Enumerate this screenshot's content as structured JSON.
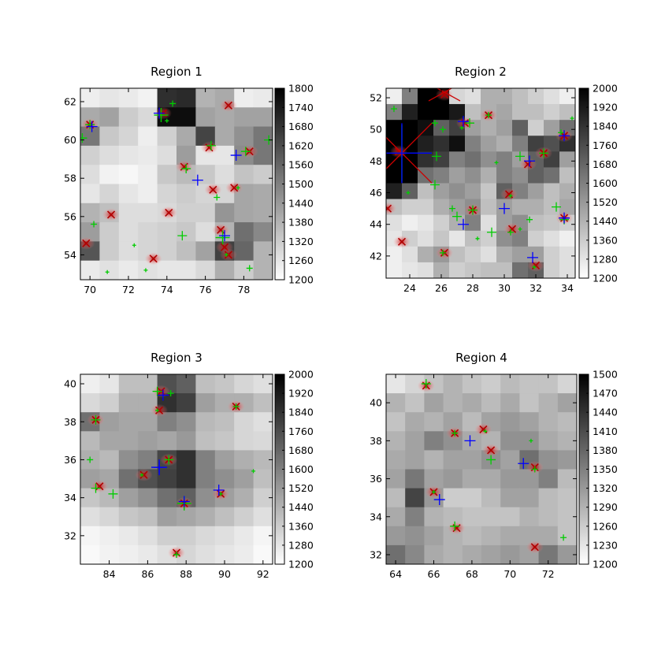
{
  "chart_data": [
    {
      "type": "heatmap",
      "title": "Region 1",
      "xlim": [
        69.5,
        79.5
      ],
      "ylim": [
        52.7,
        62.7
      ],
      "xticks": [
        70,
        72,
        74,
        76,
        78
      ],
      "yticks": [
        54,
        56,
        58,
        60,
        62
      ],
      "colorbar": {
        "min": 1200,
        "max": 1800,
        "ticks": [
          1200,
          1260,
          1320,
          1380,
          1440,
          1500,
          1560,
          1620,
          1680,
          1740,
          1800
        ]
      },
      "grid": {
        "rows": 10,
        "cols": 10,
        "values": [
          [
            1240,
            1260,
            1250,
            1230,
            1690,
            1700,
            1380,
            1400,
            1240,
            1250
          ],
          [
            1400,
            1420,
            1320,
            1290,
            1770,
            1770,
            1420,
            1400,
            1420,
            1420
          ],
          [
            1520,
            1330,
            1300,
            1240,
            1310,
            1400,
            1640,
            1400,
            1460,
            1520
          ],
          [
            1310,
            1280,
            1260,
            1250,
            1280,
            1430,
            1260,
            1260,
            1470,
            1520
          ],
          [
            1280,
            1230,
            1220,
            1240,
            1330,
            1360,
            1330,
            1280,
            1340,
            1320
          ],
          [
            1260,
            1300,
            1260,
            1240,
            1300,
            1320,
            1300,
            1300,
            1410,
            1400
          ],
          [
            1380,
            1350,
            1280,
            1280,
            1290,
            1310,
            1310,
            1450,
            1410,
            1400
          ],
          [
            1430,
            1320,
            1280,
            1300,
            1310,
            1330,
            1280,
            1380,
            1540,
            1480
          ],
          [
            1600,
            1320,
            1280,
            1300,
            1310,
            1350,
            1420,
            1650,
            1560,
            1380
          ],
          [
            1250,
            1270,
            1250,
            1270,
            1260,
            1260,
            1290,
            1390,
            1320,
            1380
          ]
        ]
      },
      "sources": [
        [
          70.0,
          60.8
        ],
        [
          73.8,
          61.4
        ],
        [
          74.9,
          58.6
        ],
        [
          76.2,
          59.6
        ],
        [
          78.3,
          59.4
        ],
        [
          77.2,
          61.8
        ],
        [
          76.4,
          57.4
        ],
        [
          77.5,
          57.5
        ],
        [
          76.8,
          55.3
        ],
        [
          74.1,
          56.2
        ],
        [
          71.1,
          56.1
        ],
        [
          69.8,
          54.6
        ],
        [
          73.3,
          53.8
        ],
        [
          77.0,
          54.4
        ],
        [
          77.2,
          54.0
        ]
      ],
      "detections_green": [
        [
          70.0,
          60.8
        ],
        [
          73.7,
          61.3
        ],
        [
          74.0,
          61.0
        ],
        [
          76.3,
          59.7
        ],
        [
          76.6,
          57.0
        ],
        [
          77.7,
          57.5
        ],
        [
          78.1,
          59.4
        ],
        [
          76.9,
          54.9
        ],
        [
          77.1,
          54.0
        ],
        [
          75.0,
          58.5
        ],
        [
          70.2,
          55.6
        ],
        [
          72.9,
          53.2
        ],
        [
          69.6,
          60.1
        ],
        [
          74.3,
          61.9
        ],
        [
          70.9,
          53.1
        ],
        [
          79.3,
          60.0
        ],
        [
          78.3,
          53.3
        ],
        [
          72.3,
          54.5
        ],
        [
          74.8,
          55.0
        ]
      ],
      "detections_blue": [
        [
          70.1,
          60.7
        ],
        [
          73.6,
          61.4
        ],
        [
          77.6,
          59.2
        ],
        [
          75.6,
          57.9
        ],
        [
          77.0,
          55.0
        ]
      ],
      "big_green": [
        [
          73.7,
          61.3
        ],
        [
          76.9,
          54.9
        ]
      ]
    },
    {
      "type": "heatmap",
      "title": "Region 2",
      "xlim": [
        22.5,
        34.5
      ],
      "ylim": [
        40.6,
        52.6
      ],
      "xticks": [
        24,
        26,
        28,
        30,
        32,
        34
      ],
      "yticks": [
        42,
        44,
        46,
        48,
        50,
        52
      ],
      "colorbar": {
        "min": 1200,
        "max": 2000,
        "ticks": [
          1200,
          1280,
          1360,
          1440,
          1520,
          1600,
          1680,
          1760,
          1840,
          1920,
          2000
        ]
      },
      "grid": {
        "rows": 12,
        "cols": 12,
        "values": [
          [
            1250,
            1600,
            2000,
            2000,
            1330,
            1300,
            1450,
            1450,
            1400,
            1350,
            1300,
            1250
          ],
          [
            1600,
            1900,
            2000,
            2000,
            1920,
            1400,
            1450,
            1480,
            1400,
            1400,
            1350,
            1400
          ],
          [
            2000,
            2000,
            1950,
            1700,
            1800,
            1500,
            1450,
            1500,
            1700,
            1350,
            1500,
            1650
          ],
          [
            2000,
            2000,
            1900,
            1850,
            1950,
            1600,
            1500,
            1450,
            1600,
            1800,
            1750,
            1850
          ],
          [
            2000,
            2000,
            1850,
            1800,
            1600,
            1650,
            1550,
            1600,
            1500,
            1700,
            1800,
            1500
          ],
          [
            2000,
            2000,
            1650,
            1600,
            1500,
            1550,
            1450,
            1600,
            1550,
            1700,
            1650,
            1400
          ],
          [
            1900,
            1700,
            1400,
            1500,
            1550,
            1500,
            1380,
            1700,
            1600,
            1500,
            1400,
            1450
          ],
          [
            1400,
            1350,
            1350,
            1450,
            1500,
            1550,
            1400,
            1500,
            1450,
            1450,
            1400,
            1480
          ],
          [
            1300,
            1250,
            1280,
            1350,
            1450,
            1600,
            1300,
            1500,
            1550,
            1400,
            1380,
            1350
          ],
          [
            1280,
            1350,
            1300,
            1380,
            1280,
            1400,
            1350,
            1550,
            1600,
            1350,
            1300,
            1250
          ],
          [
            1250,
            1300,
            1450,
            1520,
            1400,
            1350,
            1300,
            1450,
            1500,
            1500,
            1350,
            1300
          ],
          [
            1250,
            1280,
            1300,
            1450,
            1350,
            1380,
            1400,
            1400,
            1650,
            1700,
            1350,
            1300
          ]
        ]
      },
      "sources": [
        [
          23.3,
          48.6
        ],
        [
          26.2,
          52.2
        ],
        [
          27.5,
          50.4
        ],
        [
          29.0,
          50.9
        ],
        [
          32.5,
          48.5
        ],
        [
          33.8,
          49.6
        ],
        [
          31.5,
          47.8
        ],
        [
          30.3,
          45.9
        ],
        [
          28.0,
          44.9
        ],
        [
          30.5,
          43.7
        ],
        [
          33.8,
          44.4
        ],
        [
          26.2,
          42.2
        ],
        [
          32.0,
          41.4
        ],
        [
          23.5,
          42.9
        ],
        [
          22.6,
          45.0
        ]
      ],
      "detections_green": [
        [
          25.7,
          48.3
        ],
        [
          25.6,
          50.4
        ],
        [
          27.3,
          50.1
        ],
        [
          27.8,
          50.4
        ],
        [
          29.0,
          50.9
        ],
        [
          31.6,
          48.0
        ],
        [
          32.5,
          48.5
        ],
        [
          33.6,
          49.8
        ],
        [
          30.4,
          45.8
        ],
        [
          28.0,
          44.9
        ],
        [
          30.4,
          43.5
        ],
        [
          31.0,
          43.7
        ],
        [
          33.8,
          44.3
        ],
        [
          26.1,
          42.2
        ],
        [
          31.9,
          41.3
        ],
        [
          25.6,
          46.5
        ],
        [
          26.1,
          50.0
        ],
        [
          29.5,
          47.9
        ],
        [
          31.0,
          48.3
        ],
        [
          23.0,
          51.3
        ],
        [
          34.3,
          50.7
        ],
        [
          29.2,
          43.5
        ],
        [
          31.6,
          44.3
        ],
        [
          23.9,
          46.0
        ],
        [
          27.0,
          44.5
        ],
        [
          26.7,
          45.0
        ],
        [
          28.3,
          43.1
        ],
        [
          33.3,
          45.1
        ]
      ],
      "detections_blue": [
        [
          27.4,
          50.5
        ],
        [
          33.8,
          49.6
        ],
        [
          31.6,
          48.0
        ],
        [
          30.0,
          45.0
        ],
        [
          27.4,
          44.0
        ],
        [
          31.8,
          41.9
        ],
        [
          33.8,
          44.4
        ]
      ],
      "big_blue": [
        [
          23.5,
          48.5
        ]
      ],
      "big_green": [
        [
          23.5,
          48.5
        ]
      ]
    },
    {
      "type": "heatmap",
      "title": "Region 3",
      "xlim": [
        82.5,
        92.5
      ],
      "ylim": [
        30.5,
        40.5
      ],
      "xticks": [
        84,
        86,
        88,
        90,
        92
      ],
      "yticks": [
        32,
        34,
        36,
        38,
        40
      ],
      "colorbar": {
        "min": 1200,
        "max": 2000,
        "ticks": [
          1200,
          1280,
          1360,
          1440,
          1520,
          1600,
          1680,
          1760,
          1840,
          1920,
          2000
        ]
      },
      "grid": {
        "rows": 10,
        "cols": 10,
        "values": [
          [
            1250,
            1280,
            1400,
            1400,
            1750,
            1700,
            1400,
            1380,
            1330,
            1300
          ],
          [
            1320,
            1350,
            1450,
            1450,
            1850,
            1800,
            1500,
            1450,
            1450,
            1400
          ],
          [
            1650,
            1500,
            1480,
            1480,
            1600,
            1550,
            1420,
            1400,
            1330,
            1300
          ],
          [
            1420,
            1480,
            1480,
            1500,
            1480,
            1520,
            1400,
            1380,
            1330,
            1320
          ],
          [
            1450,
            1420,
            1550,
            1600,
            1780,
            1850,
            1600,
            1500,
            1450,
            1420
          ],
          [
            1500,
            1480,
            1650,
            1750,
            1800,
            1850,
            1600,
            1550,
            1500,
            1400
          ],
          [
            1380,
            1420,
            1500,
            1550,
            1650,
            1700,
            1550,
            1500,
            1450,
            1350
          ],
          [
            1300,
            1330,
            1380,
            1400,
            1500,
            1480,
            1450,
            1400,
            1350,
            1300
          ],
          [
            1230,
            1250,
            1270,
            1300,
            1350,
            1350,
            1320,
            1300,
            1270,
            1230
          ],
          [
            1220,
            1240,
            1250,
            1270,
            1300,
            1330,
            1300,
            1280,
            1260,
            1220
          ]
        ]
      },
      "sources": [
        [
          86.7,
          39.6
        ],
        [
          86.6,
          38.6
        ],
        [
          83.3,
          38.1
        ],
        [
          90.6,
          38.8
        ],
        [
          85.8,
          35.2
        ],
        [
          87.1,
          36.0
        ],
        [
          87.9,
          33.7
        ],
        [
          89.8,
          34.2
        ],
        [
          83.5,
          34.6
        ],
        [
          87.5,
          31.1
        ]
      ],
      "detections_green": [
        [
          86.5,
          39.6
        ],
        [
          87.2,
          39.5
        ],
        [
          86.5,
          38.6
        ],
        [
          83.3,
          38.1
        ],
        [
          90.6,
          38.8
        ],
        [
          85.7,
          35.2
        ],
        [
          87.1,
          36.0
        ],
        [
          87.9,
          33.7
        ],
        [
          89.8,
          34.2
        ],
        [
          83.3,
          34.5
        ],
        [
          87.5,
          31.0
        ],
        [
          91.5,
          35.4
        ],
        [
          84.2,
          34.2
        ],
        [
          83.0,
          36.0
        ]
      ],
      "detections_blue": [
        [
          86.8,
          39.4
        ],
        [
          86.6,
          35.6
        ],
        [
          87.9,
          33.8
        ],
        [
          89.7,
          34.4
        ]
      ],
      "big_blue": [
        [
          86.6,
          35.6
        ]
      ],
      "big_green": [
        [
          87.9,
          33.7
        ]
      ]
    },
    {
      "type": "heatmap",
      "title": "Region 4",
      "xlim": [
        63.5,
        73.5
      ],
      "ylim": [
        31.5,
        41.5
      ],
      "xticks": [
        64,
        66,
        68,
        70,
        72
      ],
      "yticks": [
        32,
        34,
        36,
        38,
        40
      ],
      "colorbar": {
        "min": 1200,
        "max": 1500,
        "ticks": [
          1200,
          1230,
          1260,
          1290,
          1320,
          1350,
          1380,
          1410,
          1440,
          1470,
          1500
        ]
      },
      "grid": {
        "rows": 10,
        "cols": 10,
        "values": [
          [
            1230,
            1250,
            1270,
            1290,
            1270,
            1260,
            1280,
            1270,
            1270,
            1250
          ],
          [
            1290,
            1270,
            1310,
            1290,
            1300,
            1280,
            1300,
            1270,
            1290,
            1310
          ],
          [
            1270,
            1300,
            1290,
            1310,
            1280,
            1310,
            1320,
            1310,
            1290,
            1280
          ],
          [
            1290,
            1310,
            1350,
            1330,
            1300,
            1290,
            1330,
            1330,
            1300,
            1290
          ],
          [
            1300,
            1310,
            1290,
            1310,
            1310,
            1330,
            1310,
            1370,
            1330,
            1320
          ],
          [
            1310,
            1360,
            1310,
            1320,
            1300,
            1300,
            1320,
            1320,
            1350,
            1280
          ],
          [
            1280,
            1420,
            1320,
            1260,
            1260,
            1280,
            1310,
            1310,
            1280,
            1270
          ],
          [
            1300,
            1350,
            1290,
            1280,
            1270,
            1270,
            1270,
            1290,
            1280,
            1270
          ],
          [
            1320,
            1330,
            1310,
            1290,
            1280,
            1290,
            1300,
            1300,
            1300,
            1270
          ],
          [
            1370,
            1340,
            1300,
            1290,
            1300,
            1310,
            1320,
            1310,
            1360,
            1320
          ]
        ]
      },
      "sources": [
        [
          65.6,
          40.9
        ],
        [
          67.1,
          38.4
        ],
        [
          69.0,
          37.5
        ],
        [
          71.3,
          36.6
        ],
        [
          66.0,
          35.3
        ],
        [
          67.2,
          33.4
        ],
        [
          71.3,
          32.4
        ],
        [
          68.6,
          38.6
        ]
      ],
      "detections_green": [
        [
          65.6,
          41.0
        ],
        [
          67.1,
          38.4
        ],
        [
          68.7,
          38.5
        ],
        [
          69.0,
          37.0
        ],
        [
          71.3,
          36.5
        ],
        [
          66.0,
          35.3
        ],
        [
          67.1,
          33.5
        ],
        [
          72.8,
          32.9
        ],
        [
          71.1,
          38.0
        ]
      ],
      "detections_blue": [
        [
          67.9,
          38.0
        ],
        [
          70.7,
          36.8
        ],
        [
          66.3,
          34.9
        ]
      ]
    }
  ]
}
